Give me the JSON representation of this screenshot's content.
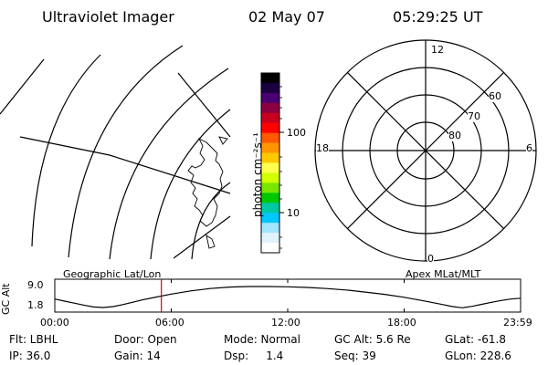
{
  "header": {
    "title": "Ultraviolet Imager",
    "date": "02 May 07",
    "time": "05:29:25 UT"
  },
  "map_labels": {
    "geographic": "Geographic Lat/Lon",
    "apex": "Apex MLat/MLT"
  },
  "colorbar": {
    "unit": "photon cm⁻²s⁻¹",
    "ticks": [
      "100",
      "10"
    ],
    "scale": "log",
    "colors": [
      "#000000",
      "#1a0040",
      "#4a0070",
      "#8a0040",
      "#c8001e",
      "#ff0000",
      "#ff5a00",
      "#ff9600",
      "#ffc800",
      "#ffff50",
      "#d2ff00",
      "#78e600",
      "#00c800",
      "#00c8a0",
      "#00c8ff",
      "#a0e6ff",
      "#e0f4ff",
      "#ffffff"
    ]
  },
  "polar": {
    "mlt_labels": [
      "12",
      "18",
      "6",
      "0"
    ],
    "lat_labels": [
      "60",
      "70",
      "80"
    ]
  },
  "chart_data": {
    "type": "line",
    "title": "",
    "ylabel": "GC Alt",
    "yticks": [
      "9.0",
      "1.8"
    ],
    "ylim": [
      1.8,
      9.0
    ],
    "xticks": [
      "00:00",
      "06:00",
      "12:00",
      "18:00",
      "23:59"
    ],
    "xlim_hours": [
      0,
      24
    ],
    "series": [
      {
        "x": [
          0,
          0.5,
          1,
          1.5,
          2,
          2.5,
          3,
          3.5,
          4,
          4.5,
          5,
          6,
          7,
          8,
          9,
          10,
          11,
          12,
          13,
          14,
          15,
          16,
          17,
          18,
          19,
          20,
          20.5,
          21,
          21.5,
          22,
          22.5,
          23,
          23.5,
          24
        ],
        "y": [
          4.7,
          4.0,
          3.3,
          2.6,
          2.0,
          1.8,
          2.1,
          2.8,
          3.6,
          4.4,
          5.1,
          6.4,
          7.5,
          8.3,
          8.8,
          9.0,
          9.0,
          8.9,
          8.7,
          8.3,
          7.8,
          7.1,
          6.3,
          5.3,
          4.1,
          2.8,
          2.1,
          1.7,
          2.2,
          2.9,
          3.6,
          4.2,
          4.7,
          5.0
        ],
        "color": "#000000"
      }
    ],
    "marker": {
      "x": 5.49,
      "color": "#e00000"
    }
  },
  "footer": {
    "col1": [
      "Flt: LBHL",
      "IP: 36.0"
    ],
    "col2": [
      "Door: Open",
      "Gain: 14"
    ],
    "col3": [
      "Mode: Normal",
      "Dsp:     1.4"
    ],
    "col4": [
      "GC Alt: 5.6 Re",
      "Seq: 39"
    ],
    "col5": [
      "GLat: -61.8",
      "GLon: 228.6"
    ]
  }
}
